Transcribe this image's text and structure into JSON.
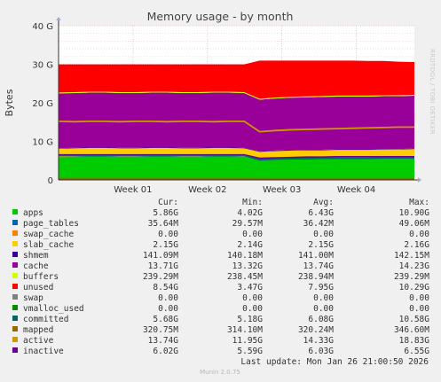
{
  "chart_data": {
    "type": "area",
    "title": "Memory usage - by month",
    "ylabel": "Bytes",
    "side_label": "RRDTOOL / TOBI OETIKER",
    "ylim": [
      0,
      40
    ],
    "y_unit": "G",
    "y_ticks": [
      {
        "value": 0,
        "label": "0"
      },
      {
        "value": 10,
        "label": "10 G"
      },
      {
        "value": 20,
        "label": "20 G"
      },
      {
        "value": 30,
        "label": "30 G"
      },
      {
        "value": 40,
        "label": "40 G"
      }
    ],
    "x_ticks": [
      "Week 01",
      "Week 02",
      "Week 03",
      "Week 04"
    ],
    "grid": true,
    "x_samples": 24,
    "stack": [
      {
        "name": "apps",
        "color": "#00cc00",
        "values": [
          5.9,
          6.0,
          6.1,
          6.1,
          6.0,
          6.0,
          6.1,
          6.1,
          6.0,
          6.0,
          6.1,
          6.1,
          6.0,
          5.1,
          5.3,
          5.4,
          5.5,
          5.5,
          5.6,
          5.6,
          5.6,
          5.7,
          5.7,
          5.8
        ]
      },
      {
        "name": "page_tables",
        "color": "#0066b3",
        "values": [
          0.04,
          0.04,
          0.04,
          0.04,
          0.04,
          0.04,
          0.04,
          0.04,
          0.04,
          0.04,
          0.04,
          0.04,
          0.04,
          0.03,
          0.03,
          0.03,
          0.03,
          0.03,
          0.03,
          0.03,
          0.03,
          0.03,
          0.04,
          0.04
        ]
      },
      {
        "name": "swap_cache",
        "color": "#ff8000",
        "values": [
          0,
          0,
          0,
          0,
          0,
          0,
          0,
          0,
          0,
          0,
          0,
          0,
          0,
          0,
          0,
          0,
          0,
          0,
          0,
          0,
          0,
          0,
          0,
          0
        ]
      },
      {
        "name": "slab_cache",
        "color": "#ffcc00",
        "values": [
          2.15,
          2.15,
          2.15,
          2.15,
          2.15,
          2.15,
          2.15,
          2.15,
          2.15,
          2.15,
          2.15,
          2.15,
          2.15,
          2.14,
          2.14,
          2.15,
          2.15,
          2.15,
          2.15,
          2.15,
          2.15,
          2.15,
          2.15,
          2.15
        ]
      },
      {
        "name": "shmem",
        "color": "#330099",
        "values": [
          0.14,
          0.14,
          0.14,
          0.14,
          0.14,
          0.14,
          0.14,
          0.14,
          0.14,
          0.14,
          0.14,
          0.14,
          0.14,
          0.14,
          0.14,
          0.14,
          0.14,
          0.14,
          0.14,
          0.14,
          0.14,
          0.14,
          0.14,
          0.14
        ]
      },
      {
        "name": "cache",
        "color": "#990099",
        "values": [
          14.2,
          14.2,
          14.2,
          14.2,
          14.2,
          14.2,
          14.2,
          14.2,
          14.2,
          14.2,
          14.2,
          14.2,
          14.2,
          13.4,
          13.5,
          13.6,
          13.6,
          13.7,
          13.7,
          13.7,
          13.7,
          13.7,
          13.7,
          13.7
        ]
      },
      {
        "name": "buffers",
        "color": "#ccff00",
        "values": [
          0.24,
          0.24,
          0.24,
          0.24,
          0.24,
          0.24,
          0.24,
          0.24,
          0.24,
          0.24,
          0.24,
          0.24,
          0.24,
          0.24,
          0.24,
          0.24,
          0.24,
          0.24,
          0.24,
          0.24,
          0.24,
          0.24,
          0.24,
          0.24
        ]
      },
      {
        "name": "unused",
        "color": "#ff0000",
        "values": [
          7.3,
          7.2,
          7.1,
          7.1,
          7.2,
          7.2,
          7.1,
          7.1,
          7.2,
          7.2,
          7.1,
          7.1,
          7.2,
          9.9,
          9.6,
          9.4,
          9.3,
          9.2,
          9.1,
          9.1,
          9.0,
          8.9,
          8.7,
          8.5
        ]
      }
    ],
    "lines": [
      {
        "name": "active",
        "color": "#cc9900",
        "values": [
          15.2,
          15.1,
          15.2,
          15.2,
          15.1,
          15.2,
          15.2,
          15.1,
          15.2,
          15.2,
          15.1,
          15.2,
          15.2,
          12.5,
          12.8,
          13.0,
          13.1,
          13.2,
          13.3,
          13.4,
          13.5,
          13.6,
          13.7,
          13.7
        ]
      },
      {
        "name": "inactive",
        "color": "#660099",
        "values": [
          6.5,
          6.5,
          6.5,
          6.5,
          6.5,
          6.5,
          6.5,
          6.5,
          6.5,
          6.5,
          6.5,
          6.5,
          6.5,
          5.6,
          5.7,
          5.8,
          5.9,
          5.9,
          6.0,
          6.0,
          6.0,
          6.0,
          6.0,
          6.0
        ]
      },
      {
        "name": "committed",
        "color": "#006666",
        "values": [
          6.3,
          6.3,
          6.3,
          6.3,
          6.3,
          6.3,
          6.3,
          6.3,
          6.3,
          6.3,
          6.3,
          6.3,
          6.3,
          5.2,
          5.4,
          5.5,
          5.5,
          5.6,
          5.6,
          5.6,
          5.6,
          5.7,
          5.7,
          5.7
        ]
      },
      {
        "name": "mapped",
        "color": "#996600",
        "values": [
          0.33,
          0.33,
          0.33,
          0.33,
          0.33,
          0.33,
          0.33,
          0.33,
          0.33,
          0.33,
          0.33,
          0.33,
          0.33,
          0.32,
          0.32,
          0.32,
          0.32,
          0.32,
          0.32,
          0.32,
          0.32,
          0.32,
          0.32,
          0.32
        ]
      }
    ],
    "legend_columns": [
      "Cur:",
      "Min:",
      "Avg:",
      "Max:"
    ],
    "legend": [
      {
        "name": "apps",
        "color": "#00cc00",
        "cur": "5.86G",
        "min": "4.02G",
        "avg": "6.43G",
        "max": "10.90G"
      },
      {
        "name": "page_tables",
        "color": "#0066b3",
        "cur": "35.64M",
        "min": "29.57M",
        "avg": "36.42M",
        "max": "49.06M"
      },
      {
        "name": "swap_cache",
        "color": "#ff8000",
        "cur": "0.00",
        "min": "0.00",
        "avg": "0.00",
        "max": "0.00"
      },
      {
        "name": "slab_cache",
        "color": "#ffcc00",
        "cur": "2.15G",
        "min": "2.14G",
        "avg": "2.15G",
        "max": "2.16G"
      },
      {
        "name": "shmem",
        "color": "#330099",
        "cur": "141.09M",
        "min": "140.18M",
        "avg": "141.00M",
        "max": "142.15M"
      },
      {
        "name": "cache",
        "color": "#990099",
        "cur": "13.71G",
        "min": "13.32G",
        "avg": "13.74G",
        "max": "14.23G"
      },
      {
        "name": "buffers",
        "color": "#ccff00",
        "cur": "239.29M",
        "min": "238.45M",
        "avg": "238.94M",
        "max": "239.29M"
      },
      {
        "name": "unused",
        "color": "#ff0000",
        "cur": "8.54G",
        "min": "3.47G",
        "avg": "7.95G",
        "max": "10.29G"
      },
      {
        "name": "swap",
        "color": "#808080",
        "cur": "0.00",
        "min": "0.00",
        "avg": "0.00",
        "max": "0.00"
      },
      {
        "name": "vmalloc_used",
        "color": "#008f00",
        "cur": "0.00",
        "min": "0.00",
        "avg": "0.00",
        "max": "0.00"
      },
      {
        "name": "committed",
        "color": "#006666",
        "cur": "5.68G",
        "min": "5.18G",
        "avg": "6.08G",
        "max": "10.58G"
      },
      {
        "name": "mapped",
        "color": "#996600",
        "cur": "320.75M",
        "min": "314.10M",
        "avg": "320.24M",
        "max": "346.60M"
      },
      {
        "name": "active",
        "color": "#cc9900",
        "cur": "13.74G",
        "min": "11.95G",
        "avg": "14.33G",
        "max": "18.83G"
      },
      {
        "name": "inactive",
        "color": "#660099",
        "cur": "6.02G",
        "min": "5.59G",
        "avg": "6.03G",
        "max": "6.55G"
      }
    ],
    "last_update": "Last update: Mon Jan 26 21:00:50 2026",
    "footer": "Munin 2.0.75"
  }
}
